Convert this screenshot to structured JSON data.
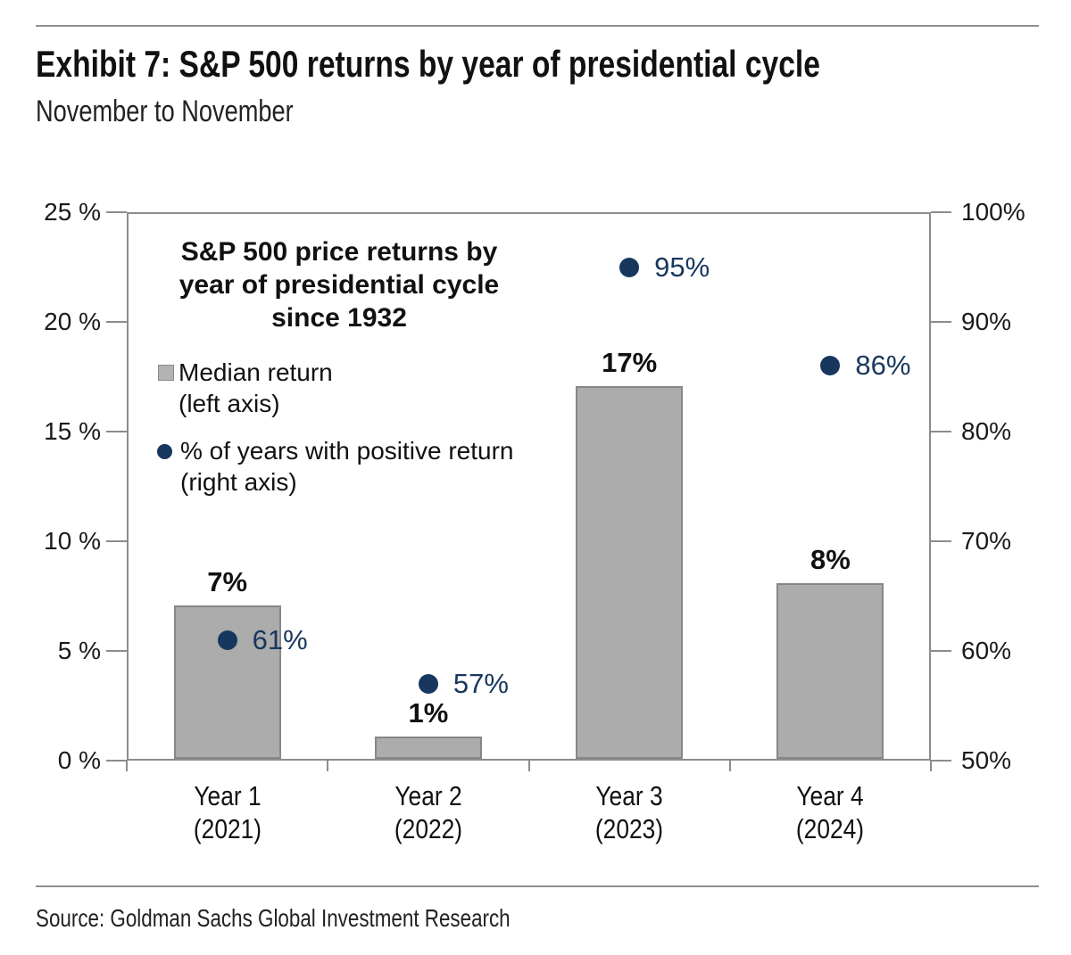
{
  "page": {
    "title": "Exhibit 7: S&P 500 returns by year of presidential cycle",
    "subtitle": "November to November",
    "source": "Source: Goldman Sachs Global Investment Research"
  },
  "chart_data": {
    "type": "bar",
    "title": "S&P 500 price returns by\nyear of presidential cycle\nsince 1932",
    "categories": [
      "Year 1\n(2021)",
      "Year 2\n(2022)",
      "Year 3\n(2023)",
      "Year 4\n(2024)"
    ],
    "series": [
      {
        "name": "Median return (left axis)",
        "type": "bar",
        "axis": "left",
        "values": [
          7,
          1,
          17,
          8
        ],
        "labels": [
          "7%",
          "1%",
          "17%",
          "8%"
        ],
        "color": "#acacac"
      },
      {
        "name": "% of years with positive return (right axis)",
        "type": "scatter",
        "axis": "right",
        "values": [
          61,
          57,
          95,
          86
        ],
        "labels": [
          "61%",
          "57%",
          "95%",
          "86%"
        ],
        "color": "#17375e"
      }
    ],
    "left_axis": {
      "min": 0,
      "max": 25,
      "ticks": [
        "25 %",
        "20 %",
        "15 %",
        "10 %",
        "5 %",
        "0 %"
      ]
    },
    "right_axis": {
      "min": 50,
      "max": 100,
      "ticks": [
        "100%",
        "90%",
        "80%",
        "70%",
        "60%",
        "50%"
      ]
    },
    "legend": [
      {
        "marker": "square",
        "label": "Median return\n(left axis)"
      },
      {
        "marker": "circle",
        "label": "% of years with positive return\n(right axis)"
      }
    ],
    "grid": false,
    "legend_position": "upper-left inside plot",
    "colors": {
      "bar_fill": "#acacac",
      "bar_border": "#878787",
      "dot_navy": "#17375e",
      "axis_gray": "#8c8c8c"
    }
  }
}
